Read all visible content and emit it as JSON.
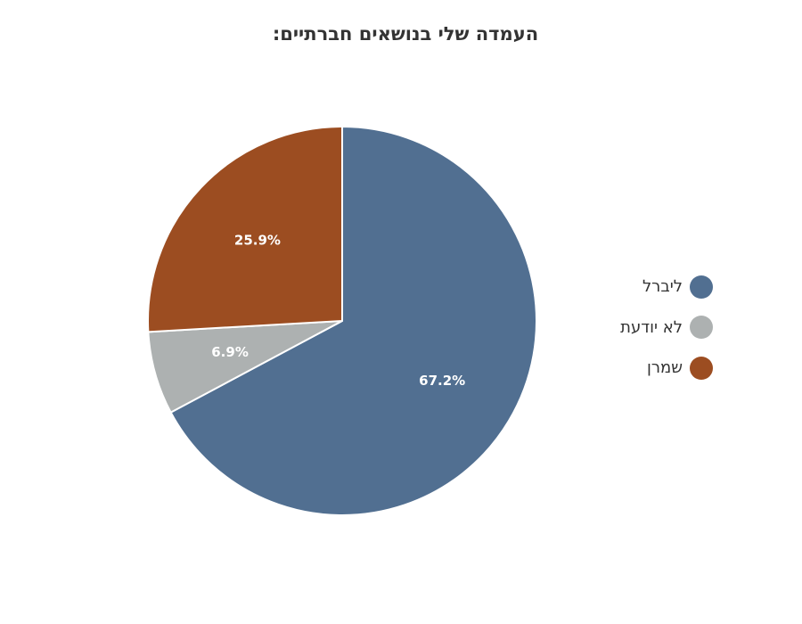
{
  "chart_data": {
    "type": "pie",
    "title": "העמדה שלי בנושאים חברתיים:",
    "start_angle_deg": 0,
    "direction": "clockwise",
    "legend_position": "right",
    "slices": [
      {
        "label": "ליברל",
        "value": 67.2,
        "value_label": "67.2%",
        "color": "#516f91"
      },
      {
        "label": "לא יודעת",
        "value": 6.9,
        "value_label": "6.9%",
        "color": "#adb1b1"
      },
      {
        "label": "שמרן",
        "value": 25.9,
        "value_label": "25.9%",
        "color": "#9c4d21"
      }
    ]
  }
}
